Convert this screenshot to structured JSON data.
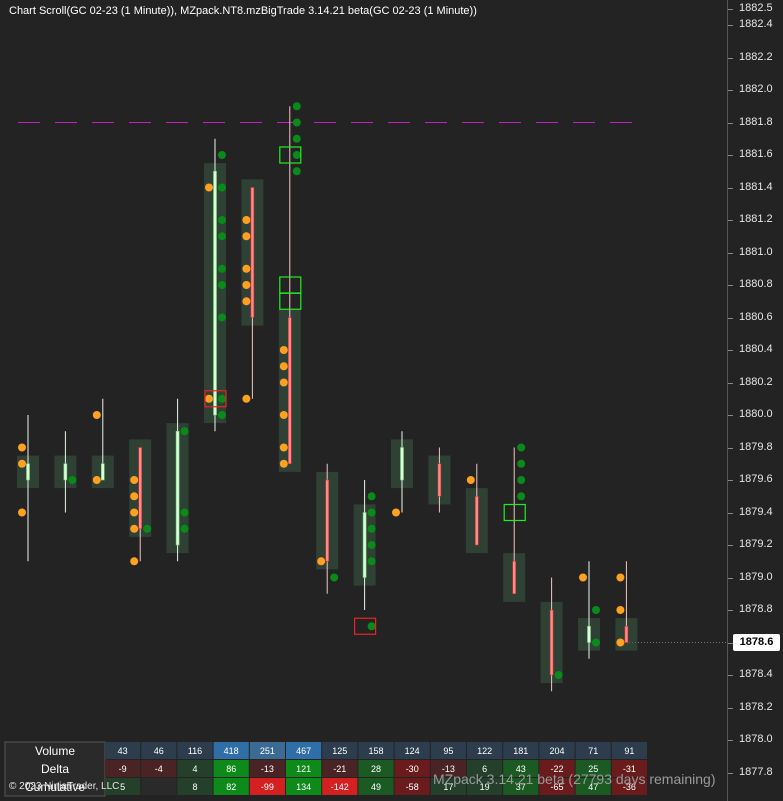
{
  "window": {
    "title": "Chart Scroll(GC 02-23 (1 Minute)), MZpack.NT8.mzBigTrade 3.14.21 beta(GC 02-23 (1 Minute))",
    "watermark": "MZpack 3.14.21 beta  (27793 days remaining)",
    "copyright": "© 2023 NinjaTrader, LLC"
  },
  "colors": {
    "background": "#232323",
    "up_candle": "#d8ffd8",
    "down_candle": "#ff8a8a",
    "buy_dot": "#0a8a1a",
    "sell_dot": "#ffa020",
    "level_line": "#c020c0",
    "box_buy": "#22ee22",
    "box_sell": "#ee2222"
  },
  "chart_data": {
    "type": "candlestick",
    "symbol": "GC 02-23",
    "timeframe": "1 Minute",
    "y_axis": {
      "range": [
        1877.6,
        1882.5
      ],
      "tick_labels": [
        "1882.4",
        "1882.2",
        "1882.0",
        "1881.8",
        "1881.6",
        "1881.4",
        "1881.2",
        "1881.0",
        "1880.8",
        "1880.6",
        "1880.4",
        "1880.2",
        "1880.0",
        "1879.8",
        "1879.6",
        "1879.4",
        "1879.2",
        "1879.0",
        "1878.8",
        "1878.6",
        "1878.4",
        "1878.2",
        "1878.0",
        "1877.8"
      ],
      "top_partial_label": "1882.5"
    },
    "last_price": "1878.6",
    "horizontal_level": 1881.8,
    "bars": [
      {
        "open": 1879.6,
        "high": 1880.0,
        "low": 1879.1,
        "close": 1879.7
      },
      {
        "open": 1879.6,
        "high": 1879.9,
        "low": 1879.4,
        "close": 1879.7
      },
      {
        "open": 1879.6,
        "high": 1880.1,
        "low": 1879.6,
        "close": 1879.7
      },
      {
        "open": 1879.8,
        "high": 1879.8,
        "low": 1879.1,
        "close": 1879.3
      },
      {
        "open": 1879.2,
        "high": 1880.1,
        "low": 1879.1,
        "close": 1879.9
      },
      {
        "open": 1880.0,
        "high": 1881.7,
        "low": 1879.9,
        "close": 1881.5
      },
      {
        "open": 1881.4,
        "high": 1881.4,
        "low": 1880.1,
        "close": 1880.6
      },
      {
        "open": 1880.6,
        "high": 1881.9,
        "low": 1879.7,
        "close": 1879.7
      },
      {
        "open": 1879.6,
        "high": 1879.7,
        "low": 1878.9,
        "close": 1879.1
      },
      {
        "open": 1879.0,
        "high": 1879.6,
        "low": 1878.8,
        "close": 1879.4
      },
      {
        "open": 1879.6,
        "high": 1879.9,
        "low": 1879.4,
        "close": 1879.8
      },
      {
        "open": 1879.7,
        "high": 1879.8,
        "low": 1879.4,
        "close": 1879.5
      },
      {
        "open": 1879.5,
        "high": 1879.7,
        "low": 1879.2,
        "close": 1879.2
      },
      {
        "open": 1879.1,
        "high": 1879.8,
        "low": 1878.9,
        "close": 1878.9
      },
      {
        "open": 1878.8,
        "high": 1879.0,
        "low": 1878.3,
        "close": 1878.4
      },
      {
        "open": 1878.6,
        "high": 1879.1,
        "low": 1878.5,
        "close": 1878.7
      },
      {
        "open": 1878.7,
        "high": 1879.1,
        "low": 1878.6,
        "close": 1878.6
      }
    ],
    "sell_trades": [
      [
        0,
        1879.8
      ],
      [
        0,
        1879.7
      ],
      [
        0,
        1879.4
      ],
      [
        2,
        1880.0
      ],
      [
        2,
        1879.6
      ],
      [
        3,
        1879.6
      ],
      [
        3,
        1879.5
      ],
      [
        3,
        1879.4
      ],
      [
        3,
        1879.3
      ],
      [
        3,
        1879.1
      ],
      [
        5,
        1881.4
      ],
      [
        5,
        1880.1
      ],
      [
        6,
        1881.2
      ],
      [
        6,
        1881.1
      ],
      [
        6,
        1880.9
      ],
      [
        6,
        1880.8
      ],
      [
        6,
        1880.7
      ],
      [
        6,
        1880.1
      ],
      [
        7,
        1880.4
      ],
      [
        7,
        1880.3
      ],
      [
        7,
        1880.2
      ],
      [
        7,
        1880.0
      ],
      [
        7,
        1879.8
      ],
      [
        7,
        1879.7
      ],
      [
        8,
        1879.1
      ],
      [
        10,
        1879.4
      ],
      [
        12,
        1879.6
      ],
      [
        15,
        1879.0
      ],
      [
        16,
        1879.0
      ],
      [
        16,
        1878.8
      ],
      [
        16,
        1878.6
      ]
    ],
    "buy_trades": [
      [
        1,
        1879.6
      ],
      [
        3,
        1879.3
      ],
      [
        4,
        1879.4
      ],
      [
        4,
        1879.3
      ],
      [
        4,
        1879.9
      ],
      [
        5,
        1881.6
      ],
      [
        5,
        1881.4
      ],
      [
        5,
        1881.2
      ],
      [
        5,
        1881.1
      ],
      [
        5,
        1880.9
      ],
      [
        5,
        1880.8
      ],
      [
        5,
        1880.6
      ],
      [
        5,
        1880.1
      ],
      [
        5,
        1880.0
      ],
      [
        7,
        1881.9
      ],
      [
        7,
        1881.8
      ],
      [
        7,
        1881.7
      ],
      [
        7,
        1881.6
      ],
      [
        7,
        1881.5
      ],
      [
        8,
        1879.0
      ],
      [
        9,
        1879.5
      ],
      [
        9,
        1879.4
      ],
      [
        9,
        1879.3
      ],
      [
        9,
        1879.2
      ],
      [
        9,
        1879.1
      ],
      [
        9,
        1878.7
      ],
      [
        13,
        1879.8
      ],
      [
        13,
        1879.7
      ],
      [
        13,
        1879.6
      ],
      [
        13,
        1879.5
      ],
      [
        15,
        1878.8
      ],
      [
        15,
        1878.6
      ],
      [
        14,
        1878.4
      ]
    ],
    "big_trade_boxes": [
      {
        "bar": 5,
        "price": 1880.1,
        "side": "sell"
      },
      {
        "bar": 7,
        "price": 1881.6,
        "side": "buy"
      },
      {
        "bar": 7,
        "price": 1880.8,
        "side": "buy"
      },
      {
        "bar": 7,
        "price": 1880.7,
        "side": "buy"
      },
      {
        "bar": 9,
        "price": 1878.7,
        "side": "sell"
      },
      {
        "bar": 13,
        "price": 1879.4,
        "side": "buy"
      }
    ],
    "stats_table": {
      "row_labels": [
        "Volume",
        "Delta",
        "Cumulative"
      ],
      "volume": [
        43,
        46,
        116,
        418,
        251,
        467,
        125,
        158,
        124,
        95,
        122,
        181,
        204,
        71,
        91
      ],
      "delta": [
        -9,
        -4,
        4,
        86,
        -13,
        121,
        -21,
        28,
        -30,
        -13,
        6,
        43,
        -22,
        25,
        -31
      ],
      "cumulative": [
        5,
        "",
        8,
        82,
        -99,
        134,
        -142,
        49,
        -58,
        17,
        19,
        37,
        -65,
        47,
        -36
      ]
    }
  }
}
